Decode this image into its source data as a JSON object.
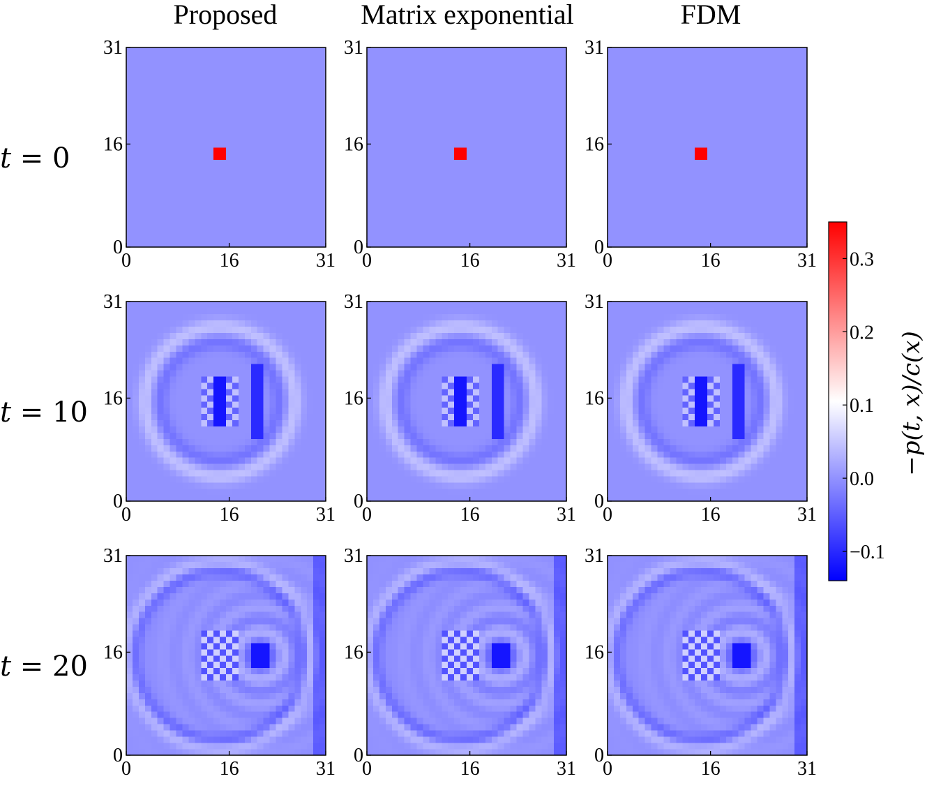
{
  "chart_data": {
    "type": "heatmap",
    "columns": [
      "Proposed",
      "Matrix exponential",
      "FDM"
    ],
    "rows": [
      {
        "label_var": "t",
        "label_eq": " = ",
        "label_val": "0",
        "t": 0
      },
      {
        "label_var": "t",
        "label_eq": " = ",
        "label_val": "10",
        "t": 10
      },
      {
        "label_var": "t",
        "label_eq": " = ",
        "label_val": "20",
        "t": 20
      }
    ],
    "grid": {
      "nx": 32,
      "ny": 32,
      "xlim": [
        0,
        31
      ],
      "ylim": [
        0,
        31
      ]
    },
    "x_ticks": [
      0,
      16,
      31
    ],
    "y_ticks": [
      0,
      16,
      31
    ],
    "x_tick_labels": [
      "0",
      "16",
      "31"
    ],
    "y_tick_labels": [
      "0",
      "16",
      "31"
    ],
    "initial_source": {
      "x_range": [
        14,
        15
      ],
      "y_range": [
        14,
        15
      ],
      "value": 0.35
    },
    "colorbar": {
      "label": "−p(t, x)/c(x)",
      "vmin": -0.14,
      "vmax": 0.35,
      "ticks": [
        -0.1,
        0.0,
        0.1,
        0.2,
        0.3
      ],
      "tick_labels": [
        "−0.1",
        "0.0",
        "0.1",
        "0.2",
        "0.3"
      ],
      "colormap": "bwr",
      "color_low": "#0000ff",
      "color_mid": "#ffffff",
      "color_high": "#ff0000"
    }
  }
}
